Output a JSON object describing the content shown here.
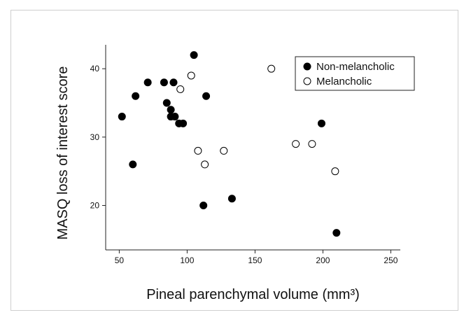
{
  "chart_data": {
    "type": "scatter",
    "title": "",
    "xlabel": "Pineal parenchymal volume (mm³)",
    "ylabel": "MASQ loss of interest score",
    "xlim": [
      40,
      257
    ],
    "ylim": [
      13.5,
      43.5
    ],
    "xticks": [
      50,
      100,
      150,
      200,
      250
    ],
    "yticks": [
      20,
      30,
      40
    ],
    "legend_position": "top-right",
    "grid": false,
    "series": [
      {
        "name": "Non-melancholic",
        "marker": "filled-circle",
        "color": "#000000",
        "points": [
          {
            "x": 52,
            "y": 33
          },
          {
            "x": 60,
            "y": 26
          },
          {
            "x": 62,
            "y": 36
          },
          {
            "x": 71,
            "y": 38
          },
          {
            "x": 83,
            "y": 38
          },
          {
            "x": 85,
            "y": 35
          },
          {
            "x": 88,
            "y": 34
          },
          {
            "x": 88,
            "y": 33
          },
          {
            "x": 90,
            "y": 38
          },
          {
            "x": 91,
            "y": 33
          },
          {
            "x": 94,
            "y": 32
          },
          {
            "x": 97,
            "y": 32
          },
          {
            "x": 105,
            "y": 42
          },
          {
            "x": 112,
            "y": 20
          },
          {
            "x": 114,
            "y": 36
          },
          {
            "x": 133,
            "y": 21
          },
          {
            "x": 199,
            "y": 32
          },
          {
            "x": 210,
            "y": 16
          }
        ]
      },
      {
        "name": "Melancholic",
        "marker": "open-circle",
        "color": "#000000",
        "points": [
          {
            "x": 95,
            "y": 37
          },
          {
            "x": 103,
            "y": 39
          },
          {
            "x": 108,
            "y": 28
          },
          {
            "x": 113,
            "y": 26
          },
          {
            "x": 127,
            "y": 28
          },
          {
            "x": 162,
            "y": 40
          },
          {
            "x": 180,
            "y": 29
          },
          {
            "x": 192,
            "y": 29
          },
          {
            "x": 209,
            "y": 25
          }
        ]
      }
    ]
  }
}
